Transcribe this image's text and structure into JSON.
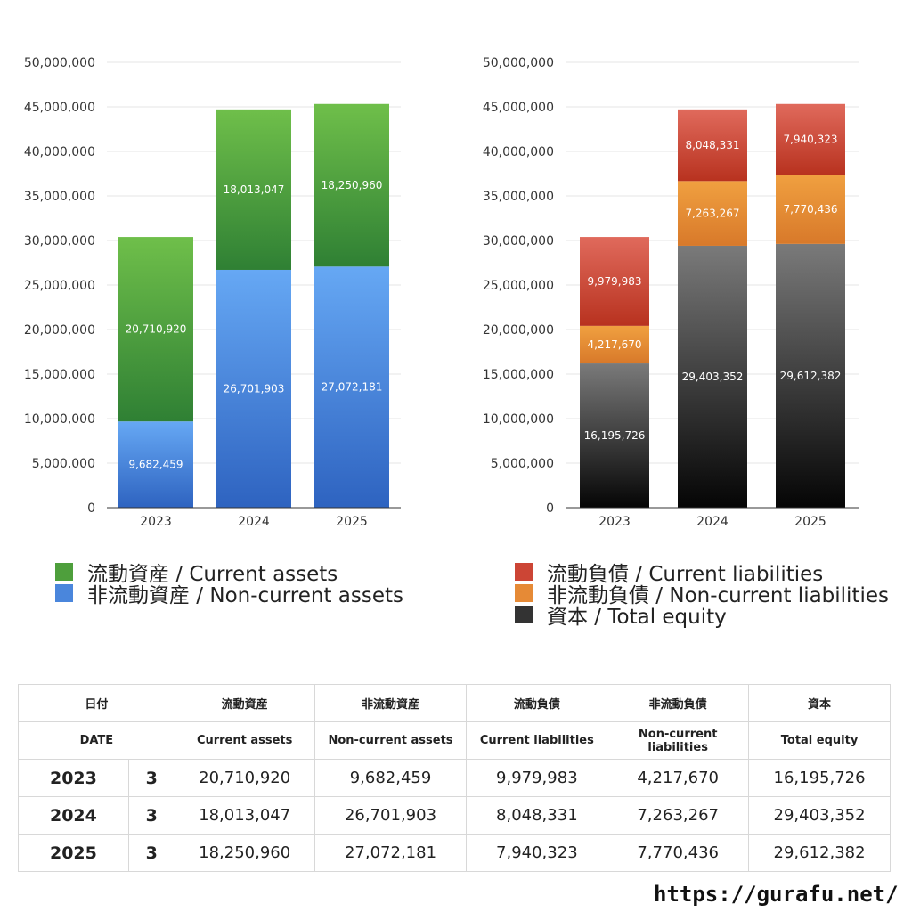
{
  "chart_data": [
    {
      "type": "bar",
      "stacked": true,
      "categories": [
        "2023",
        "2024",
        "2025"
      ],
      "ylim": [
        0,
        50000000
      ],
      "yticks": [
        "0",
        "5,000,000",
        "10,000,000",
        "15,000,000",
        "20,000,000",
        "25,000,000",
        "30,000,000",
        "35,000,000",
        "40,000,000",
        "45,000,000",
        "50,000,000"
      ],
      "series": [
        {
          "name": "非流動資産 / Non-current assets",
          "values": [
            9682459,
            26701903,
            27072181
          ],
          "labels": [
            "9,682,459",
            "26,701,903",
            "27,072,181"
          ],
          "color_top": "#66a8f4",
          "color_bottom": "#2e63c0"
        },
        {
          "name": "流動資産 / Current assets",
          "values": [
            20710920,
            18013047,
            18250960
          ],
          "labels": [
            "20,710,920",
            "18,013,047",
            "18,250,960"
          ],
          "color_top": "#6fbf4a",
          "color_bottom": "#2f8034"
        }
      ],
      "grid": true,
      "legend_position": "bottom"
    },
    {
      "type": "bar",
      "stacked": true,
      "categories": [
        "2023",
        "2024",
        "2025"
      ],
      "ylim": [
        0,
        50000000
      ],
      "yticks": [
        "0",
        "5,000,000",
        "10,000,000",
        "15,000,000",
        "20,000,000",
        "25,000,000",
        "30,000,000",
        "35,000,000",
        "40,000,000",
        "45,000,000",
        "50,000,000"
      ],
      "series": [
        {
          "name": "資本 / Total equity",
          "values": [
            16195726,
            29403352,
            29612382
          ],
          "labels": [
            "16,195,726",
            "29,403,352",
            "29,612,382"
          ],
          "color_top": "#7a7a7a",
          "color_bottom": "#050505"
        },
        {
          "name": "非流動負債 / Non-current liabilities",
          "values": [
            4217670,
            7263267,
            7770436
          ],
          "labels": [
            "4,217,670",
            "7,263,267",
            "7,770,436"
          ],
          "color_top": "#f0a040",
          "color_bottom": "#d8792a"
        },
        {
          "name": "流動負債 / Current liabilities",
          "values": [
            9979983,
            8048331,
            7940323
          ],
          "labels": [
            "9,979,983",
            "8,048,331",
            "7,940,323"
          ],
          "color_top": "#e06a5c",
          "color_bottom": "#b8321f"
        }
      ],
      "grid": true,
      "legend_position": "bottom"
    }
  ],
  "legend_left": [
    {
      "label": "流動資産 / Current assets",
      "color": "#4e9f3c"
    },
    {
      "label": "非流動資産 / Non-current assets",
      "color": "#4a86dc"
    }
  ],
  "legend_right": [
    {
      "label": "流動負債 / Current liabilities",
      "color": "#cc4535"
    },
    {
      "label": "非流動負債 / Non-current liabilities",
      "color": "#e68a36"
    },
    {
      "label": "資本 / Total equity",
      "color": "#333333"
    }
  ],
  "table": {
    "headers_jp": [
      "日付",
      "流動資産",
      "非流動資産",
      "流動負債",
      "非流動負債",
      "資本"
    ],
    "headers_en": [
      "DATE",
      "Current assets",
      "Non-current assets",
      "Current liabilities",
      "Non-current liabilities",
      "Total equity"
    ],
    "rows": [
      {
        "year": "2023",
        "month": "3",
        "cells": [
          "20,710,920",
          "9,682,459",
          "9,979,983",
          "4,217,670",
          "16,195,726"
        ]
      },
      {
        "year": "2024",
        "month": "3",
        "cells": [
          "18,013,047",
          "26,701,903",
          "8,048,331",
          "7,263,267",
          "29,403,352"
        ]
      },
      {
        "year": "2025",
        "month": "3",
        "cells": [
          "18,250,960",
          "27,072,181",
          "7,940,323",
          "7,770,436",
          "29,612,382"
        ]
      }
    ]
  },
  "footer_url": "https://gurafu.net/"
}
